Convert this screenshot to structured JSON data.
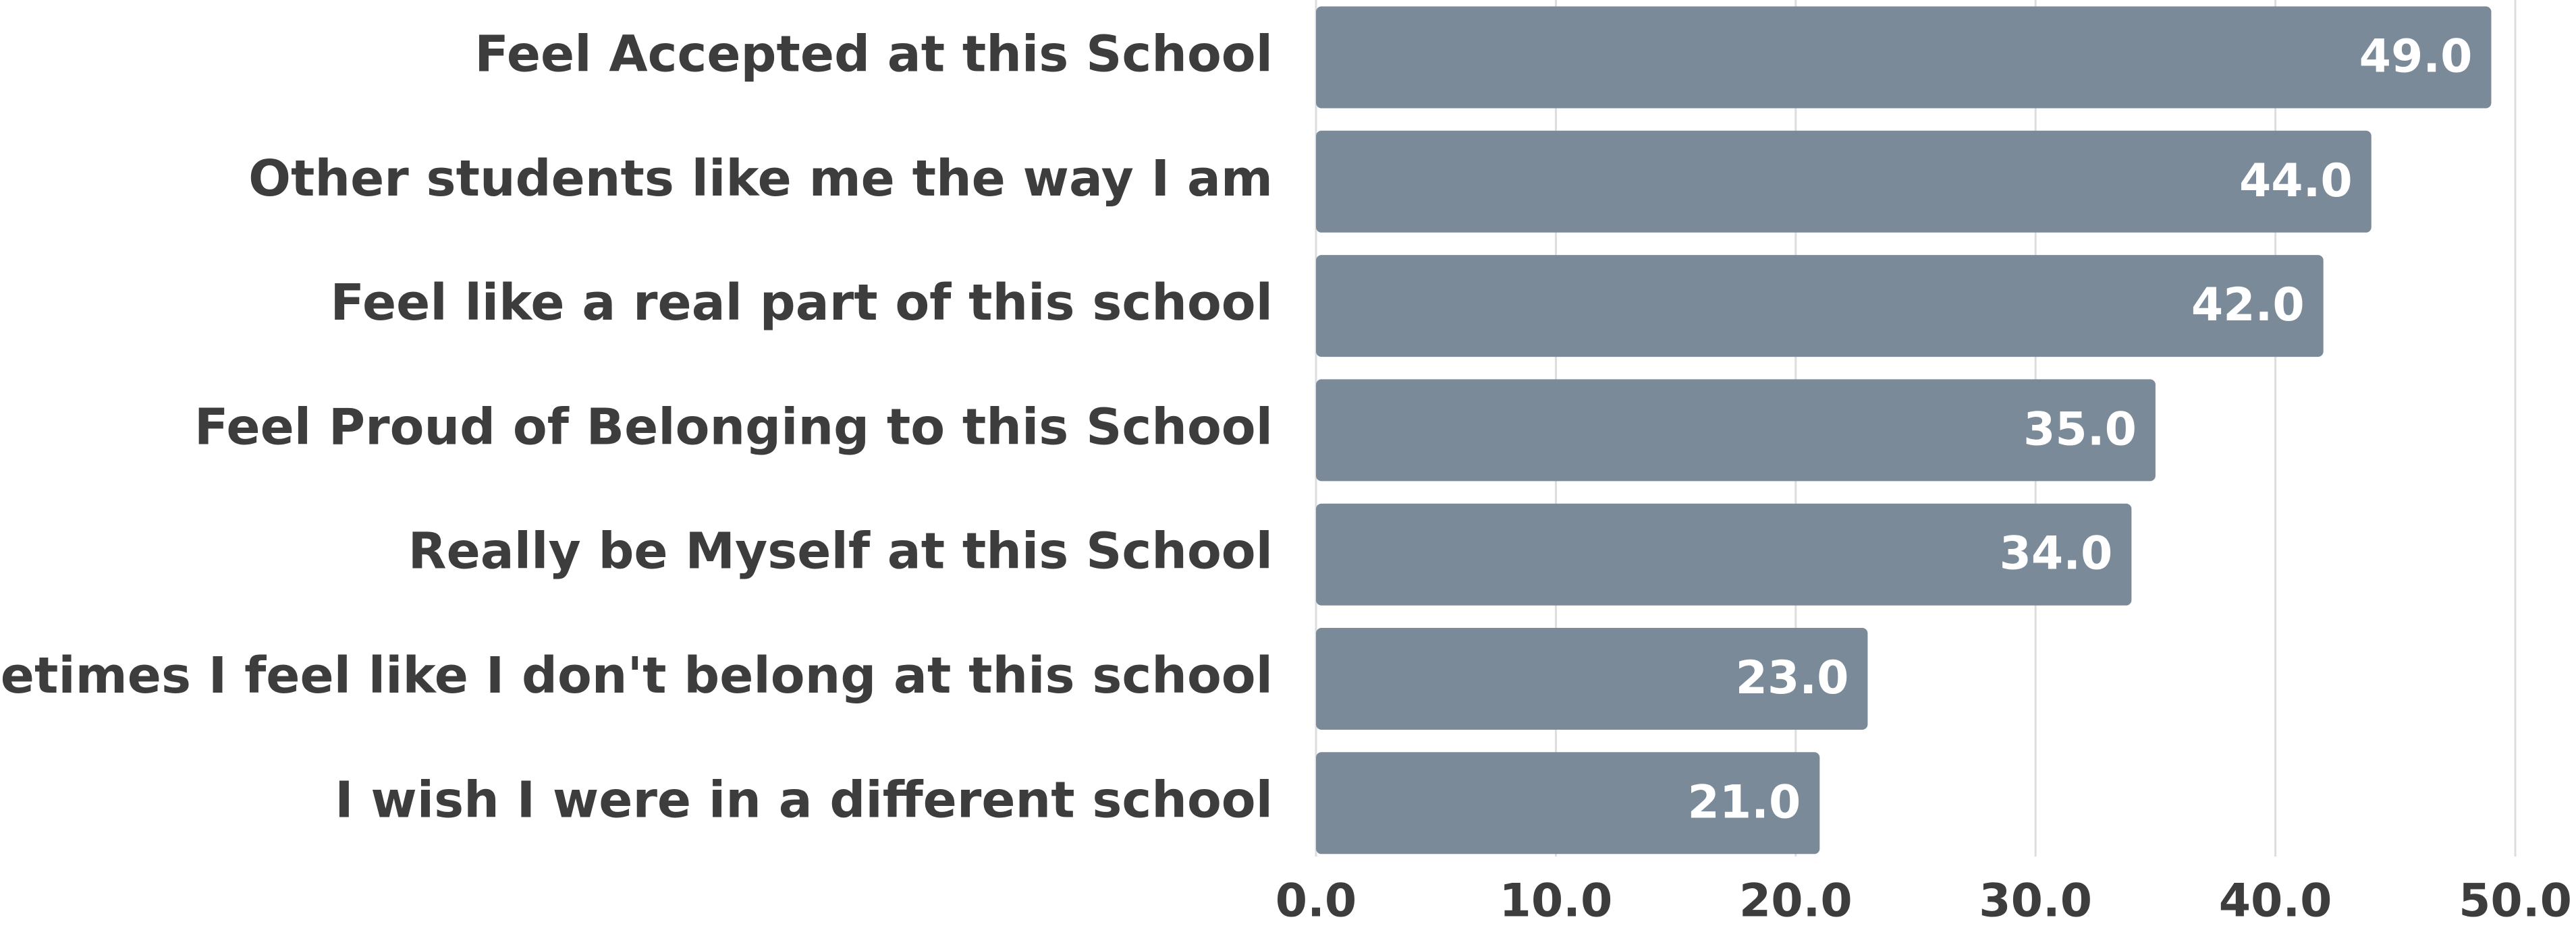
{
  "chart_data": {
    "type": "barh",
    "categories": [
      "Feel Accepted at this School",
      "Other students like me the way I am",
      "Feel like a real part of this school",
      "Feel Proud of Belonging to this School",
      "Really be Myself at this School",
      "Sometimes I feel like I don't belong at this school",
      "I wish I were in a different school"
    ],
    "values": [
      49,
      44,
      42,
      35,
      34,
      23,
      21
    ],
    "value_labels": [
      "49.0",
      "44.0",
      "42.0",
      "35.0",
      "34.0",
      "23.0",
      "21.0"
    ],
    "color": "#7a8a99",
    "xlim": [
      0,
      50
    ],
    "xticks": [
      {
        "value": 0,
        "label": "0.0"
      },
      {
        "value": 10,
        "label": "10.0"
      },
      {
        "value": 20,
        "label": "20.0"
      },
      {
        "value": 30,
        "label": "30.0"
      },
      {
        "value": 40,
        "label": "40.0"
      },
      {
        "value": 50,
        "label": "50.0"
      }
    ],
    "grid": true
  }
}
